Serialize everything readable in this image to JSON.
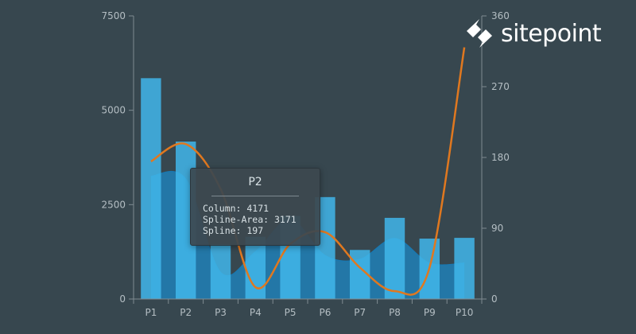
{
  "brand": {
    "name": "sitepoint",
    "logo_icon": "sitepoint-logo-icon"
  },
  "colors": {
    "background": "#37474f",
    "column": "#41b6ea",
    "spline_area": "#1d87c4",
    "spline": "#e0781f",
    "axis": "#7f8b91",
    "tick_text": "#b4bec3"
  },
  "chart_data": {
    "type": "bar",
    "categories": [
      "P1",
      "P2",
      "P3",
      "P4",
      "P5",
      "P6",
      "P7",
      "P8",
      "P9",
      "P10"
    ],
    "series": [
      {
        "name": "Column",
        "type": "bar",
        "axis": "left",
        "values": [
          5850,
          4171,
          1450,
          1650,
          2200,
          2700,
          1300,
          2150,
          1600,
          1620
        ]
      },
      {
        "name": "Spline-Area",
        "type": "area",
        "axis": "left",
        "values": [
          3250,
          3171,
          700,
          1250,
          2100,
          1150,
          1050,
          1600,
          950,
          950
        ]
      },
      {
        "name": "Spline",
        "type": "line",
        "axis": "right",
        "values": [
          175,
          197,
          140,
          15,
          70,
          85,
          40,
          10,
          40,
          320
        ]
      }
    ],
    "left_axis": {
      "ylim": [
        0,
        7500
      ],
      "ticks": [
        "0",
        "2500",
        "5000",
        "7500"
      ]
    },
    "right_axis": {
      "ylim": [
        0,
        360
      ],
      "ticks": [
        "0",
        "90",
        "180",
        "270",
        "360"
      ]
    },
    "legend": "none",
    "grid": false,
    "tooltip": {
      "title": "P2",
      "lines": [
        "Column: 4171",
        "Spline-Area: 3171",
        "Spline: 197"
      ]
    }
  }
}
